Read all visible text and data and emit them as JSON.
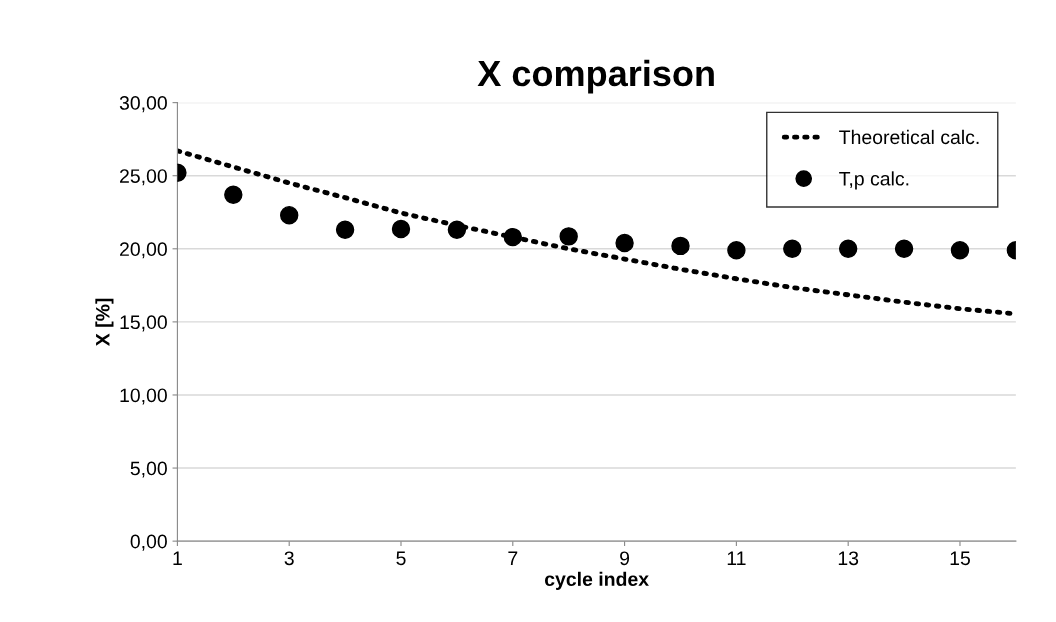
{
  "chart_data": {
    "type": "line",
    "title": "X comparison",
    "xlabel": "cycle index",
    "ylabel": "X [%]",
    "x": [
      1,
      2,
      3,
      4,
      5,
      6,
      7,
      8,
      9,
      10,
      11,
      12,
      13,
      14,
      15,
      16
    ],
    "series": [
      {
        "name": "Theoretical calc.",
        "color": "#000000",
        "line_style": "dotted",
        "marker": "none",
        "values": [
          26.7,
          25.6,
          24.5,
          23.5,
          22.45,
          21.6,
          20.8,
          20.0,
          19.3,
          18.6,
          17.95,
          17.35,
          16.85,
          16.35,
          15.9,
          15.55
        ]
      },
      {
        "name": "T,p calc.",
        "type": "scatter",
        "color": "#000000",
        "marker": "circle",
        "values": [
          25.2,
          23.7,
          22.3,
          21.3,
          21.35,
          21.3,
          20.8,
          20.85,
          20.4,
          20.2,
          19.9,
          20.0,
          20.0,
          20.0,
          19.9,
          19.9
        ]
      }
    ],
    "xlim": [
      1,
      16
    ],
    "xticks": [
      1,
      3,
      5,
      7,
      9,
      11,
      13,
      15
    ],
    "ylim": [
      0,
      30
    ],
    "yticks": [
      {
        "value": 0,
        "label": "0,00"
      },
      {
        "value": 5,
        "label": "5,00"
      },
      {
        "value": 10,
        "label": "10,00"
      },
      {
        "value": 15,
        "label": "15,00"
      },
      {
        "value": 20,
        "label": "20,00"
      },
      {
        "value": 25,
        "label": "25,00"
      },
      {
        "value": 30,
        "label": "30,00"
      }
    ],
    "grid": "y",
    "legend": "top right"
  }
}
